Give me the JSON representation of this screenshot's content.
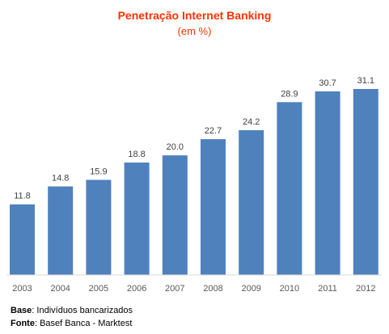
{
  "chart_data": {
    "type": "bar",
    "title": "Penetração Internet Banking",
    "subtitle": "(em %)",
    "categories": [
      "2003",
      "2004",
      "2005",
      "2006",
      "2007",
      "2008",
      "2009",
      "2010",
      "2011",
      "2012"
    ],
    "values": [
      11.8,
      14.8,
      15.9,
      18.8,
      20.0,
      22.7,
      24.2,
      28.9,
      30.7,
      31.1
    ],
    "value_labels": [
      "11.8",
      "14.8",
      "15.9",
      "18.8",
      "20.0",
      "22.7",
      "24.2",
      "28.9",
      "30.7",
      "31.1"
    ],
    "xlabel": "",
    "ylabel": "",
    "ylim": [
      0,
      31.1
    ],
    "grid": false,
    "legend": "none",
    "bar_color": "#4f81bd",
    "title_color": "#ff3300"
  },
  "footer": {
    "base_label": "Base",
    "base_text": ": Indivíduos bancarizados",
    "source_label": "Fonte",
    "source_text": ": Basef Banca - Marktest"
  }
}
